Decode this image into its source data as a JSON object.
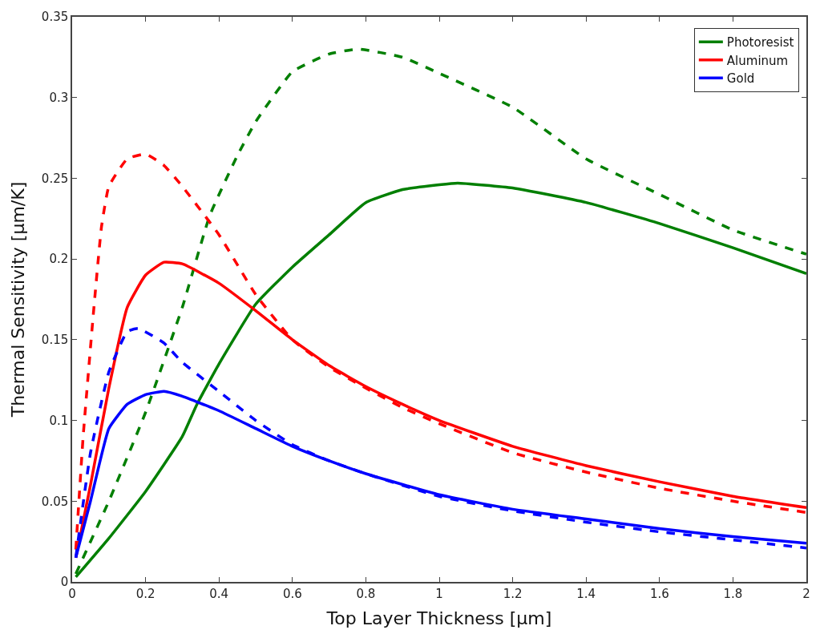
{
  "chart_data": {
    "type": "line",
    "xlabel": "Top Layer Thickness [µm]",
    "ylabel": "Thermal Sensitivity [µm/K]",
    "xlim": [
      0,
      2
    ],
    "xticks": [
      0,
      0.2,
      0.4,
      0.6,
      0.8,
      1,
      1.2,
      1.4,
      1.6,
      1.8,
      2
    ],
    "ylim": [
      0,
      0.35
    ],
    "yticks": [
      0,
      0.05,
      0.1,
      0.15,
      0.2,
      0.25,
      0.3,
      0.35
    ],
    "legend": "top right",
    "marker": "none",
    "series": [
      {
        "name": "Photoresist",
        "color": "#007f00",
        "line_style": "solid",
        "x": [
          0.01,
          0.1,
          0.2,
          0.3,
          0.34,
          0.4,
          0.5,
          0.6,
          0.7,
          0.8,
          0.9,
          1.0,
          1.05,
          1.2,
          1.4,
          1.6,
          1.8,
          2.0
        ],
        "values": [
          0.003,
          0.027,
          0.056,
          0.09,
          0.11,
          0.135,
          0.172,
          0.195,
          0.215,
          0.235,
          0.243,
          0.246,
          0.247,
          0.244,
          0.235,
          0.222,
          0.207,
          0.191
        ]
      },
      {
        "color": "#007f00",
        "line_style": "dashed",
        "x": [
          0.01,
          0.1,
          0.2,
          0.3,
          0.375,
          0.45,
          0.5,
          0.6,
          0.7,
          0.78,
          0.9,
          1.0,
          1.2,
          1.4,
          1.6,
          1.8,
          2.0
        ],
        "values": [
          0.005,
          0.05,
          0.105,
          0.17,
          0.227,
          0.264,
          0.285,
          0.316,
          0.327,
          0.33,
          0.325,
          0.315,
          0.294,
          0.262,
          0.24,
          0.218,
          0.203
        ]
      },
      {
        "name": "Aluminum",
        "color": "#ff0000",
        "line_style": "solid",
        "x": [
          0.01,
          0.05,
          0.1,
          0.15,
          0.2,
          0.25,
          0.3,
          0.4,
          0.5,
          0.6,
          0.7,
          0.8,
          0.9,
          1.0,
          1.2,
          1.4,
          1.6,
          1.8,
          2.0
        ],
        "values": [
          0.015,
          0.06,
          0.12,
          0.17,
          0.19,
          0.198,
          0.197,
          0.185,
          0.168,
          0.15,
          0.134,
          0.121,
          0.11,
          0.1,
          0.084,
          0.072,
          0.062,
          0.053,
          0.046
        ]
      },
      {
        "color": "#ff0000",
        "line_style": "dashed",
        "x": [
          0.01,
          0.03,
          0.057,
          0.08,
          0.1,
          0.15,
          0.2,
          0.25,
          0.3,
          0.4,
          0.5,
          0.6,
          0.7,
          0.8,
          0.9,
          1.0,
          1.2,
          1.4,
          1.6,
          1.8,
          2.0
        ],
        "values": [
          0.02,
          0.09,
          0.164,
          0.22,
          0.245,
          0.262,
          0.265,
          0.258,
          0.245,
          0.215,
          0.178,
          0.15,
          0.133,
          0.12,
          0.108,
          0.098,
          0.08,
          0.068,
          0.058,
          0.05,
          0.043
        ]
      },
      {
        "name": "Gold",
        "color": "#0000ff",
        "line_style": "solid",
        "x": [
          0.01,
          0.05,
          0.1,
          0.15,
          0.2,
          0.25,
          0.3,
          0.4,
          0.5,
          0.6,
          0.7,
          0.8,
          1.0,
          1.2,
          1.4,
          1.6,
          1.8,
          2.0
        ],
        "values": [
          0.015,
          0.05,
          0.095,
          0.11,
          0.116,
          0.118,
          0.115,
          0.106,
          0.095,
          0.084,
          0.075,
          0.067,
          0.054,
          0.045,
          0.039,
          0.033,
          0.028,
          0.024
        ]
      },
      {
        "color": "#0000ff",
        "line_style": "dashed",
        "x": [
          0.01,
          0.05,
          0.1,
          0.15,
          0.18,
          0.25,
          0.3,
          0.4,
          0.5,
          0.6,
          0.7,
          0.8,
          1.0,
          1.2,
          1.4,
          1.6,
          1.8,
          2.0
        ],
        "values": [
          0.015,
          0.08,
          0.13,
          0.155,
          0.157,
          0.148,
          0.136,
          0.118,
          0.1,
          0.085,
          0.075,
          0.067,
          0.053,
          0.044,
          0.037,
          0.031,
          0.026,
          0.021
        ]
      }
    ]
  }
}
